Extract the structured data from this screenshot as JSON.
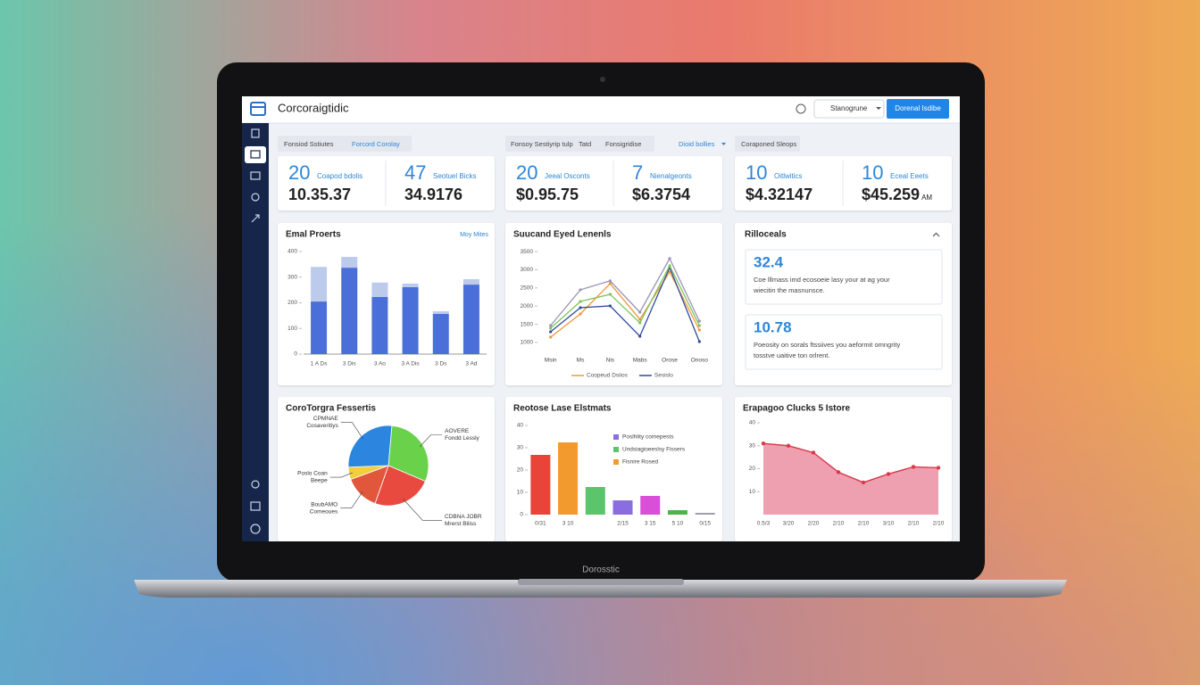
{
  "header": {
    "title": "Corcoraigtidic",
    "menu": "Stanogrune",
    "button": "Dorenal Isdibe"
  },
  "tabs": [
    [
      "Fonsiod Sstiutes",
      "Forcord Corolay"
    ],
    [
      "Fonsoy Sestiyrip tulp",
      "Tatd",
      "Fonsigridise",
      "Dioid bollies"
    ],
    [
      "Coraponed Sleops"
    ]
  ],
  "kpis": [
    {
      "number": 20,
      "label": "Coapod bdolis",
      "value": "10.35.37"
    },
    {
      "number": 47,
      "label": "Seotuel Bicks",
      "value": "34.9176"
    },
    {
      "number": 20,
      "label": "Jeeal Osconts",
      "value": "$0.95.75"
    },
    {
      "number": 7,
      "label": "Nienalgeonts",
      "value": "$6.3754"
    },
    {
      "number": 10,
      "label": "Oitlwitics",
      "value": "$4.32147"
    },
    {
      "number": 10,
      "label": "Eceal Eeets",
      "value": "$45.259",
      "suffix": "AM"
    }
  ],
  "chart_data": [
    {
      "type": "stacked-bar",
      "title": "Emal Proerts",
      "link": "Moy Mites",
      "categories": [
        "1 A Ds",
        "3 Dis",
        "3 Ao",
        "3 A Dis",
        "3 Ds",
        "3 Ad"
      ],
      "series": [
        {
          "color": "#4a6fd8",
          "values": [
            205,
            337,
            223,
            261,
            157,
            271
          ]
        },
        {
          "color": "#bccaec",
          "values": [
            135,
            42,
            56,
            14,
            10,
            21
          ]
        }
      ],
      "ylim": [
        0,
        400
      ],
      "yticks": [
        0,
        100,
        200,
        300,
        400
      ]
    },
    {
      "type": "line",
      "title": "Suucand Eyed Lenenls",
      "categories": [
        "Msin",
        "Ms",
        "Nis",
        "Mabs",
        "Orose",
        "Onoso"
      ],
      "series": [
        {
          "name": "Coopeud Dsiios",
          "color": "#f0973a",
          "values": [
            1146,
            1784,
            2620,
            1637,
            2940,
            1342
          ]
        },
        {
          "name": "Sesislo",
          "color": "#2f4a9a",
          "values": [
            1293,
            1956,
            2006,
            1170,
            3062,
            1023
          ]
        },
        {
          "color": "#9a93b8",
          "values": [
            1465,
            2448,
            2694,
            1833,
            3308,
            1588
          ]
        },
        {
          "color": "#7cc45a",
          "values": [
            1391,
            2128,
            2325,
            1539,
            3111,
            1465
          ]
        }
      ],
      "ylim": [
        900,
        3600
      ],
      "yticks": [
        1000,
        1500,
        2000,
        2500,
        3000,
        3500
      ]
    },
    {
      "type": "pie",
      "title": "CoroTorgra Fessertis",
      "categories": [
        "AOVERE",
        "CDBNA JOBR",
        "BoubAMO",
        "Poslo Coan",
        "CPMNAE"
      ],
      "sublabels": [
        "Fondd Lessly",
        "Mrerst Biliss",
        "Comeoues",
        "Beepe",
        "Cosaveritiys"
      ],
      "values": [
        30,
        24,
        14,
        5,
        27
      ],
      "colors": [
        "#6ad14b",
        "#e84a3f",
        "#e0573c",
        "#f2cf3b",
        "#2c86e0"
      ]
    },
    {
      "type": "bar",
      "title": "Reotose Lase Elstmats",
      "categories": [
        "0/31",
        "3 10",
        null,
        "2/15",
        "3 15",
        "5 10",
        "0/15"
      ],
      "values": [
        26.8,
        32.4,
        12.4,
        6.4,
        8.4,
        2,
        0.8
      ],
      "colors": [
        "#e8443a",
        "#f29a2e",
        "#5cc46a",
        "#8a6ee0",
        "#d94fd8",
        "#4fb34a",
        "#9aa0a8"
      ],
      "legend": [
        {
          "name": "Poslhlity comepests",
          "color": "#8a6ee0"
        },
        {
          "name": "Undsiagioeeslsy Fissers",
          "color": "#5cc46a"
        },
        {
          "name": "Fisnire Rosed",
          "color": "#f29a2e"
        }
      ],
      "ylim": [
        0,
        40
      ],
      "yticks": [
        0,
        10,
        20,
        30,
        40
      ]
    },
    {
      "type": "area",
      "title": "Erapagoo Clucks 5 Istore",
      "categories": [
        "0.5/3",
        "3/20",
        "2/20",
        "2/10",
        "2/10",
        "3/10",
        "2/10",
        "2/10"
      ],
      "values": [
        31,
        30,
        27,
        18.5,
        14,
        17.7,
        20.8,
        20.4
      ],
      "color": "#d83a4a",
      "fill": "#eb8ea2",
      "ylim": [
        0,
        40
      ],
      "yticks": [
        10,
        20,
        30,
        40
      ]
    }
  ],
  "notes": {
    "title": "Rilloceals",
    "items": [
      {
        "value": "32.4",
        "lines": [
          "Coe lllmass imd ecosoeie lasy your at ag your",
          "wiecitin the masnunsce."
        ]
      },
      {
        "value": "10.78",
        "lines": [
          "Poeosity on sorals ftssiives you aeformit omngrity",
          "tosstve uaitive ton orlrent."
        ]
      }
    ]
  },
  "footer": "Dorosstic"
}
